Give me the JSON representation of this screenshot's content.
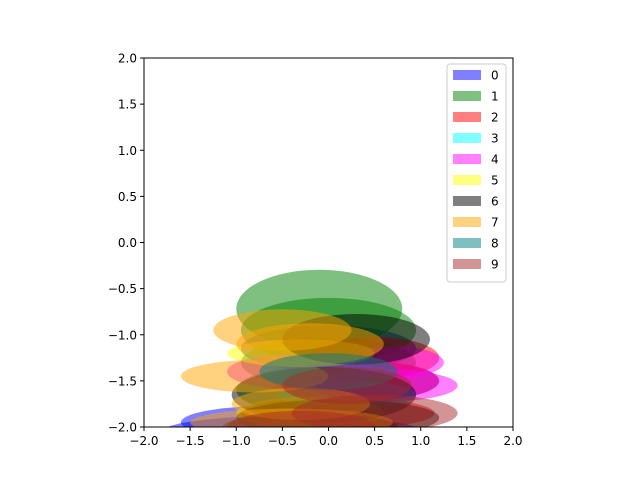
{
  "chart_data": {
    "type": "scatter",
    "xlim": [
      -2.0,
      2.0
    ],
    "ylim": [
      -2.0,
      2.0
    ],
    "xticks": [
      "−2.0",
      "−1.5",
      "−1.0",
      "−0.5",
      "0.0",
      "0.5",
      "1.0",
      "1.5",
      "2.0"
    ],
    "yticks": [
      "−2.0",
      "−1.5",
      "−1.0",
      "−0.5",
      "0.0",
      "0.5",
      "1.0",
      "1.5",
      "2.0"
    ],
    "grid": false,
    "legend_position": "upper right",
    "alpha": 0.5,
    "series": [
      {
        "name": "0",
        "color": "#0000ff",
        "ellipses": [
          {
            "cx": -0.4,
            "cy": -2.05,
            "w": 2.8,
            "h": 0.35
          },
          {
            "cx": 0.0,
            "cy": -1.15,
            "w": 1.9,
            "h": 0.5
          },
          {
            "cx": 0.5,
            "cy": -1.5,
            "w": 1.4,
            "h": 0.4
          },
          {
            "cx": -0.7,
            "cy": -1.95,
            "w": 1.8,
            "h": 0.35
          }
        ]
      },
      {
        "name": "1",
        "color": "#008000",
        "ellipses": [
          {
            "cx": -0.1,
            "cy": -0.72,
            "w": 1.8,
            "h": 0.85
          },
          {
            "cx": 0.0,
            "cy": -0.95,
            "w": 1.9,
            "h": 0.7
          },
          {
            "cx": 0.0,
            "cy": -1.3,
            "w": 1.9,
            "h": 0.55
          },
          {
            "cx": -0.2,
            "cy": -1.6,
            "w": 1.6,
            "h": 0.5
          }
        ]
      },
      {
        "name": "2",
        "color": "#ff0000",
        "ellipses": [
          {
            "cx": 0.3,
            "cy": -1.5,
            "w": 1.8,
            "h": 0.45
          },
          {
            "cx": 0.5,
            "cy": -1.25,
            "w": 1.4,
            "h": 0.45
          },
          {
            "cx": 0.1,
            "cy": -1.85,
            "w": 2.1,
            "h": 0.35
          }
        ]
      },
      {
        "name": "3",
        "color": "#00ffff",
        "ellipses": [
          {
            "cx": 0.2,
            "cy": -1.65,
            "w": 1.5,
            "h": 0.3
          }
        ]
      },
      {
        "name": "4",
        "color": "#ff00ff",
        "ellipses": [
          {
            "cx": 0.6,
            "cy": -1.55,
            "w": 1.6,
            "h": 0.35
          },
          {
            "cx": 0.7,
            "cy": -1.3,
            "w": 1.1,
            "h": 0.35
          },
          {
            "cx": -0.3,
            "cy": -1.4,
            "w": 1.6,
            "h": 0.4
          }
        ]
      },
      {
        "name": "5",
        "color": "#ffff00",
        "ellipses": [
          {
            "cx": -0.3,
            "cy": -1.2,
            "w": 1.6,
            "h": 0.3
          },
          {
            "cx": -0.2,
            "cy": -1.85,
            "w": 1.6,
            "h": 0.35
          }
        ]
      },
      {
        "name": "6",
        "color": "#000000",
        "ellipses": [
          {
            "cx": 0.3,
            "cy": -1.05,
            "w": 1.6,
            "h": 0.55
          },
          {
            "cx": -0.05,
            "cy": -1.65,
            "w": 2.0,
            "h": 0.6
          },
          {
            "cx": 0.1,
            "cy": -1.9,
            "w": 2.2,
            "h": 0.4
          },
          {
            "cx": -0.2,
            "cy": -2.0,
            "w": 1.9,
            "h": 0.3
          }
        ]
      },
      {
        "name": "7",
        "color": "#ffa500",
        "ellipses": [
          {
            "cx": -0.8,
            "cy": -1.45,
            "w": 1.6,
            "h": 0.35
          },
          {
            "cx": -0.5,
            "cy": -0.95,
            "w": 1.5,
            "h": 0.45
          },
          {
            "cx": -0.3,
            "cy": -1.75,
            "w": 1.5,
            "h": 0.35
          },
          {
            "cx": -0.4,
            "cy": -1.95,
            "w": 2.2,
            "h": 0.3
          },
          {
            "cx": -0.2,
            "cy": -1.1,
            "w": 1.6,
            "h": 0.45
          }
        ]
      },
      {
        "name": "8",
        "color": "#008080",
        "ellipses": [
          {
            "cx": 0.0,
            "cy": -1.4,
            "w": 1.5,
            "h": 0.4
          }
        ]
      },
      {
        "name": "9",
        "color": "#a52a2a",
        "ellipses": [
          {
            "cx": 0.5,
            "cy": -1.85,
            "w": 1.8,
            "h": 0.4
          },
          {
            "cx": 0.2,
            "cy": -1.55,
            "w": 1.4,
            "h": 0.4
          },
          {
            "cx": -0.3,
            "cy": -2.0,
            "w": 1.6,
            "h": 0.35
          }
        ]
      }
    ]
  }
}
